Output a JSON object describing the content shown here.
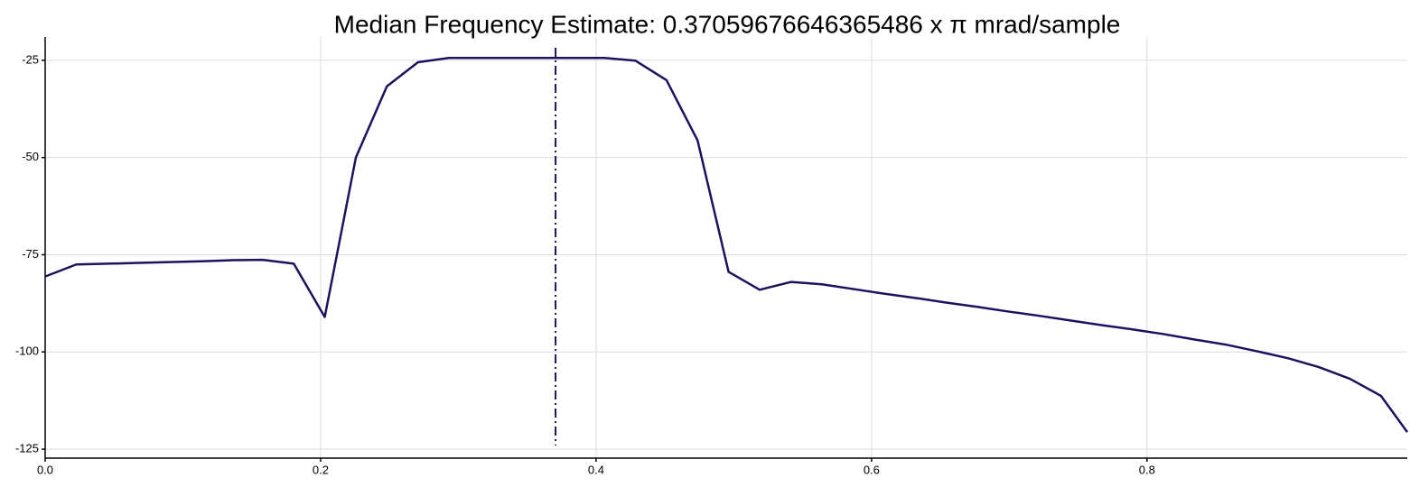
{
  "chart_data": {
    "type": "line",
    "title": "Median Frequency Estimate: 0.37059676646365486 x π mrad/sample",
    "x": [
      0,
      0.0226,
      0.0451,
      0.0677,
      0.0902,
      0.1128,
      0.1354,
      0.1579,
      0.1805,
      0.203,
      0.2256,
      0.2481,
      0.2707,
      0.2932,
      0.3158,
      0.3384,
      0.3609,
      0.3835,
      0.406,
      0.4286,
      0.4511,
      0.4737,
      0.4962,
      0.5188,
      0.5414,
      0.5639,
      0.5865,
      0.609,
      0.6316,
      0.6541,
      0.6767,
      0.6992,
      0.7218,
      0.7444,
      0.7669,
      0.7895,
      0.812,
      0.8346,
      0.8571,
      0.8797,
      0.9023,
      0.9248,
      0.9474,
      0.9699,
      0.989
    ],
    "series": [
      {
        "color": "#20105f",
        "values": [
          -80.6,
          -77.5,
          -77.3,
          -77.1,
          -76.9,
          -76.7,
          -76.4,
          -76.3,
          -77.3,
          -91,
          -50,
          -31.7,
          -25.5,
          -24.4,
          -24.4,
          -24.4,
          -24.4,
          -24.4,
          -24.4,
          -25.1,
          -30.1,
          -45.6,
          -79.4,
          -84,
          -82,
          -82.6,
          -83.8,
          -85,
          -86.1,
          -87.3,
          -88.4,
          -89.6,
          -90.7,
          -91.9,
          -93.1,
          -94.2,
          -95.4,
          -96.8,
          -98.1,
          -99.8,
          -101.6,
          -103.9,
          -106.9,
          -111.3,
          -120.6
        ]
      }
    ],
    "vlines": [
      {
        "x": 0.37059676646365486,
        "color": "#20105f"
      }
    ],
    "xlim": [
      0,
      0.989
    ],
    "ylim": [
      -127.3,
      -19
    ],
    "xticks": [
      {
        "value": 0,
        "label": "0.0"
      },
      0.2,
      0.4,
      0.6,
      0.8
    ],
    "yticks": [
      -25,
      -50,
      -75,
      -100,
      -125
    ],
    "grid": true
  }
}
